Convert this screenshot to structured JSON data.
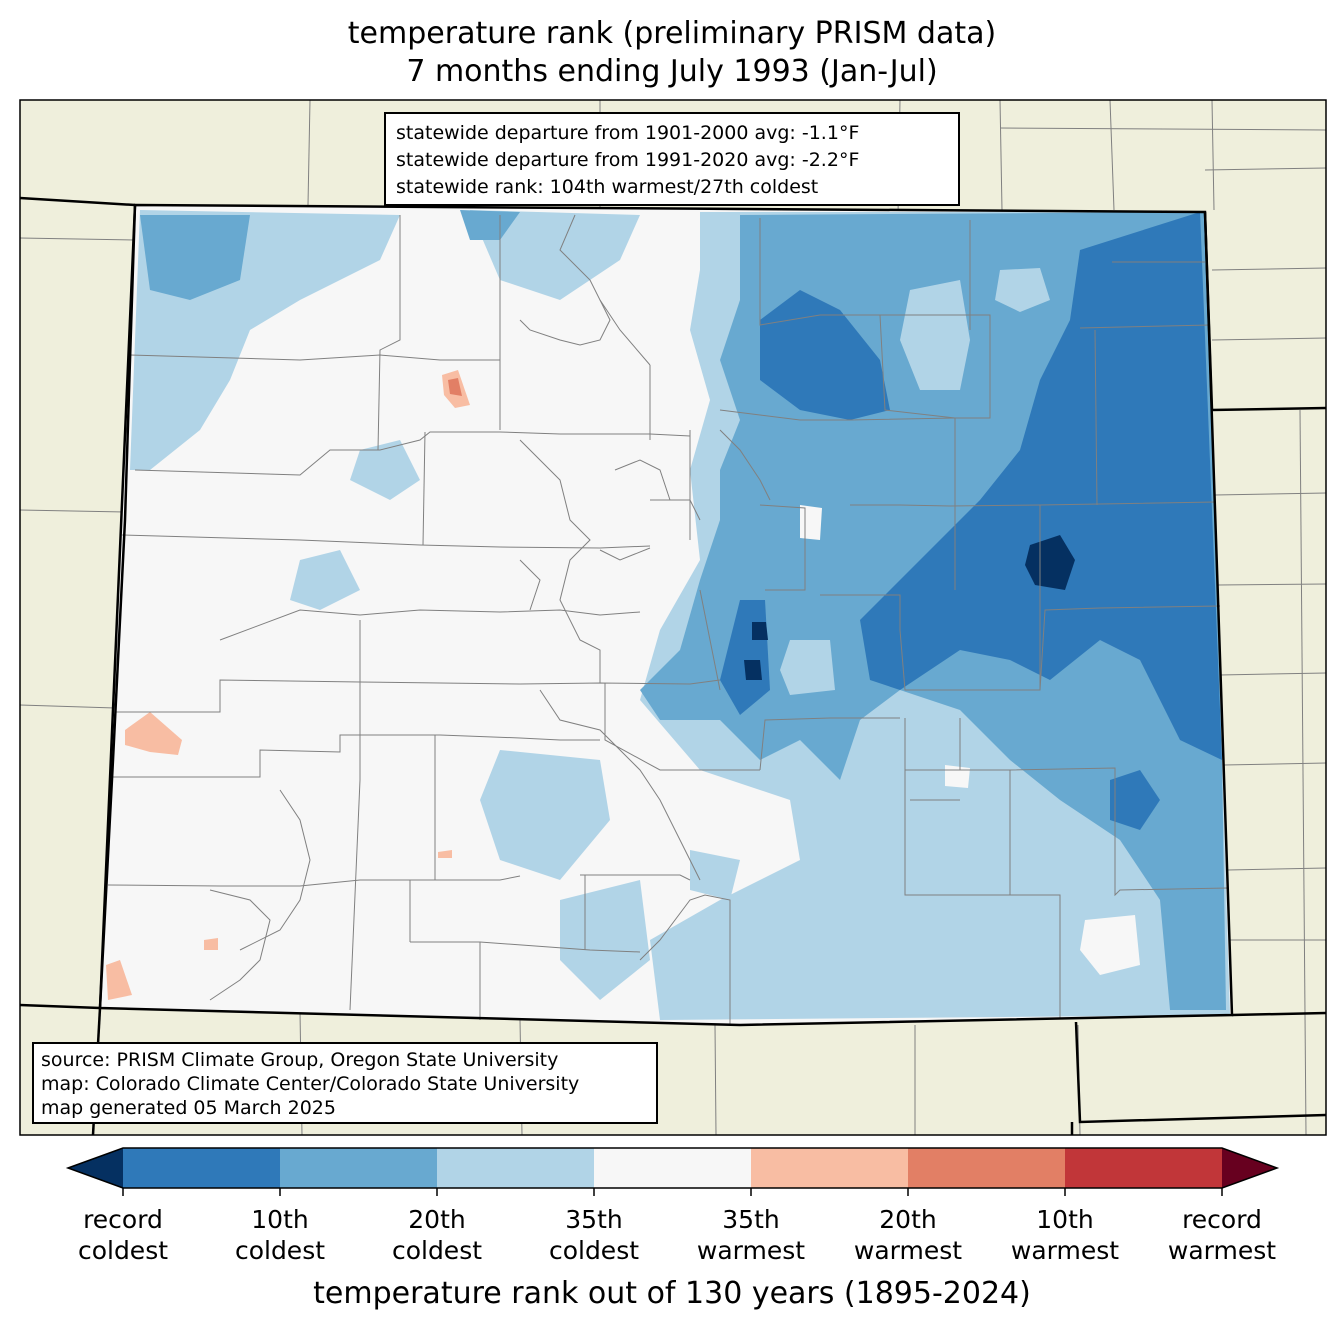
{
  "title": {
    "line1": "temperature rank (preliminary PRISM data)",
    "line2": "7 months ending July 1993 (Jan-Jul)"
  },
  "stats": {
    "line1": "statewide departure from 1901-2000 avg: -1.1°F",
    "line2": "statewide departure from 1991-2020 avg: -2.2°F",
    "line3": "statewide rank: 104th warmest/27th coldest"
  },
  "source": {
    "line1": "source: PRISM Climate Group, Oregon State University",
    "line2": "map: Colorado Climate Center/Colorado State University",
    "line3": "map generated 05 March 2025"
  },
  "colorbar": {
    "title": "temperature rank out of 130 years (1895-2024)",
    "ticks": [
      {
        "l1": "record",
        "l2": "coldest"
      },
      {
        "l1": "10th",
        "l2": "coldest"
      },
      {
        "l1": "20th",
        "l2": "coldest"
      },
      {
        "l1": "35th",
        "l2": "coldest"
      },
      {
        "l1": "35th",
        "l2": "warmest"
      },
      {
        "l1": "20th",
        "l2": "warmest"
      },
      {
        "l1": "10th",
        "l2": "warmest"
      },
      {
        "l1": "record",
        "l2": "warmest"
      }
    ],
    "colors": {
      "below_record_cold": "#053061",
      "record_to_10th_cold": "#2f79b9",
      "10th_to_20th_cold": "#68a9d0",
      "20th_to_35th_cold": "#b1d4e7",
      "near_normal": "#f7f7f7",
      "35th_to_20th_warm": "#f8bda3",
      "20th_to_10th_warm": "#e27f65",
      "10th_to_record_warm": "#c13639",
      "above_record_warm": "#67001f"
    }
  },
  "map_colors": {
    "outside_state": "#efefdc",
    "county_lines": "#808080",
    "state_lines": "#000000"
  }
}
